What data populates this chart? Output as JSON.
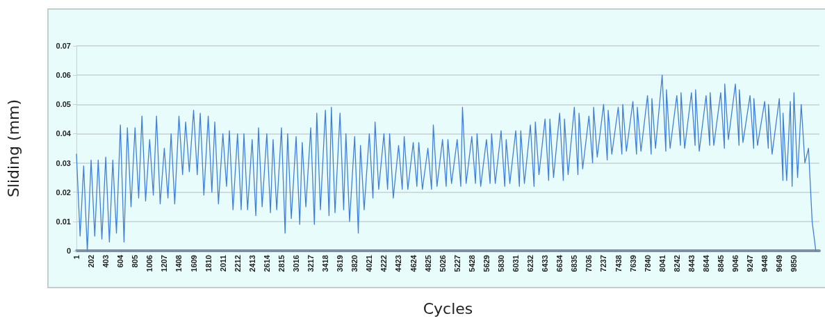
{
  "chart_data": {
    "type": "line",
    "xlabel": "Cycles",
    "ylabel": "Sliding (mm)",
    "color": "#3f7fd9",
    "marker": "none",
    "grid": "y",
    "x": [
      1,
      51,
      100,
      150,
      202,
      252,
      300,
      350,
      403,
      453,
      500,
      550,
      604,
      654,
      700,
      750,
      805,
      855,
      900,
      950,
      1006,
      1056,
      1100,
      1150,
      1207,
      1257,
      1300,
      1350,
      1408,
      1458,
      1500,
      1550,
      1609,
      1659,
      1700,
      1750,
      1810,
      1860,
      1900,
      1950,
      2011,
      2061,
      2100,
      2150,
      2212,
      2262,
      2300,
      2350,
      2413,
      2463,
      2500,
      2550,
      2614,
      2664,
      2700,
      2750,
      2815,
      2865,
      2900,
      2950,
      3016,
      3066,
      3100,
      3150,
      3217,
      3267,
      3300,
      3350,
      3418,
      3468,
      3500,
      3550,
      3619,
      3669,
      3700,
      3750,
      3820,
      3870,
      3900,
      3950,
      4021,
      4071,
      4100,
      4150,
      4222,
      4272,
      4300,
      4350,
      4423,
      4473,
      4500,
      4550,
      4624,
      4674,
      4700,
      4750,
      4825,
      4875,
      4900,
      4950,
      5026,
      5076,
      5100,
      5150,
      5227,
      5277,
      5300,
      5350,
      5428,
      5478,
      5500,
      5550,
      5629,
      5679,
      5700,
      5750,
      5830,
      5880,
      5900,
      5950,
      6031,
      6081,
      6100,
      6150,
      6232,
      6282,
      6300,
      6350,
      6433,
      6483,
      6500,
      6550,
      6634,
      6684,
      6700,
      6750,
      6835,
      6885,
      6900,
      6950,
      7036,
      7086,
      7100,
      7150,
      7237,
      7287,
      7300,
      7350,
      7438,
      7488,
      7500,
      7550,
      7639,
      7689,
      7700,
      7750,
      7840,
      7890,
      7900,
      7950,
      8041,
      8091,
      8100,
      8150,
      8242,
      8292,
      8300,
      8350,
      8443,
      8493,
      8500,
      8550,
      8644,
      8694,
      8700,
      8750,
      8845,
      8895,
      8900,
      8950,
      9046,
      9096,
      9100,
      9150,
      9247,
      9297,
      9300,
      9350,
      9448,
      9498,
      9500,
      9550,
      9649,
      9699,
      9700,
      9750,
      9800,
      9825,
      9850,
      9900,
      9950,
      10000,
      10050,
      10100,
      10150
    ],
    "values": [
      0.033,
      0.005,
      0.029,
      0.0,
      0.031,
      0.005,
      0.031,
      0.004,
      0.032,
      0.003,
      0.031,
      0.006,
      0.043,
      0.003,
      0.042,
      0.015,
      0.042,
      0.018,
      0.046,
      0.017,
      0.038,
      0.019,
      0.046,
      0.016,
      0.035,
      0.018,
      0.04,
      0.016,
      0.046,
      0.026,
      0.044,
      0.027,
      0.048,
      0.026,
      0.047,
      0.019,
      0.046,
      0.02,
      0.044,
      0.016,
      0.04,
      0.022,
      0.041,
      0.014,
      0.04,
      0.014,
      0.04,
      0.014,
      0.038,
      0.012,
      0.042,
      0.015,
      0.04,
      0.013,
      0.038,
      0.014,
      0.042,
      0.006,
      0.04,
      0.011,
      0.039,
      0.009,
      0.037,
      0.015,
      0.042,
      0.009,
      0.047,
      0.014,
      0.048,
      0.012,
      0.049,
      0.013,
      0.047,
      0.014,
      0.04,
      0.01,
      0.039,
      0.006,
      0.036,
      0.014,
      0.04,
      0.018,
      0.044,
      0.021,
      0.04,
      0.021,
      0.04,
      0.018,
      0.036,
      0.021,
      0.039,
      0.021,
      0.037,
      0.022,
      0.037,
      0.021,
      0.035,
      0.021,
      0.043,
      0.022,
      0.038,
      0.022,
      0.038,
      0.023,
      0.038,
      0.022,
      0.049,
      0.023,
      0.039,
      0.023,
      0.04,
      0.022,
      0.038,
      0.023,
      0.04,
      0.023,
      0.041,
      0.022,
      0.038,
      0.023,
      0.041,
      0.022,
      0.041,
      0.023,
      0.043,
      0.022,
      0.044,
      0.026,
      0.045,
      0.024,
      0.045,
      0.025,
      0.047,
      0.024,
      0.045,
      0.026,
      0.049,
      0.026,
      0.047,
      0.028,
      0.046,
      0.03,
      0.049,
      0.032,
      0.05,
      0.031,
      0.048,
      0.033,
      0.049,
      0.033,
      0.05,
      0.034,
      0.051,
      0.033,
      0.049,
      0.034,
      0.053,
      0.033,
      0.052,
      0.035,
      0.06,
      0.034,
      0.055,
      0.035,
      0.053,
      0.036,
      0.054,
      0.035,
      0.054,
      0.036,
      0.055,
      0.034,
      0.053,
      0.036,
      0.054,
      0.036,
      0.054,
      0.035,
      0.057,
      0.038,
      0.057,
      0.036,
      0.055,
      0.037,
      0.053,
      0.035,
      0.052,
      0.036,
      0.051,
      0.035,
      0.05,
      0.033,
      0.052,
      0.024,
      0.047,
      0.024,
      0.051,
      0.022,
      0.054,
      0.025,
      0.05,
      0.03,
      0.035,
      0.01,
      0.0
    ],
    "xlim": [
      1,
      10200
    ],
    "xticks": [
      1,
      202,
      403,
      604,
      805,
      1006,
      1207,
      1408,
      1609,
      1810,
      2011,
      2212,
      2413,
      2614,
      2815,
      3016,
      3217,
      3418,
      3619,
      3820,
      4021,
      4222,
      4423,
      4624,
      4825,
      5026,
      5227,
      5428,
      5629,
      5830,
      6031,
      6232,
      6433,
      6634,
      6835,
      7036,
      7237,
      7438,
      7639,
      7840,
      8041,
      8242,
      8443,
      8644,
      8845,
      9046,
      9247,
      9448,
      9649,
      9850
    ],
    "ylim": [
      0,
      0.07
    ],
    "yticks": [
      0,
      0.01,
      0.02,
      0.03,
      0.04,
      0.05,
      0.06,
      0.07
    ]
  }
}
